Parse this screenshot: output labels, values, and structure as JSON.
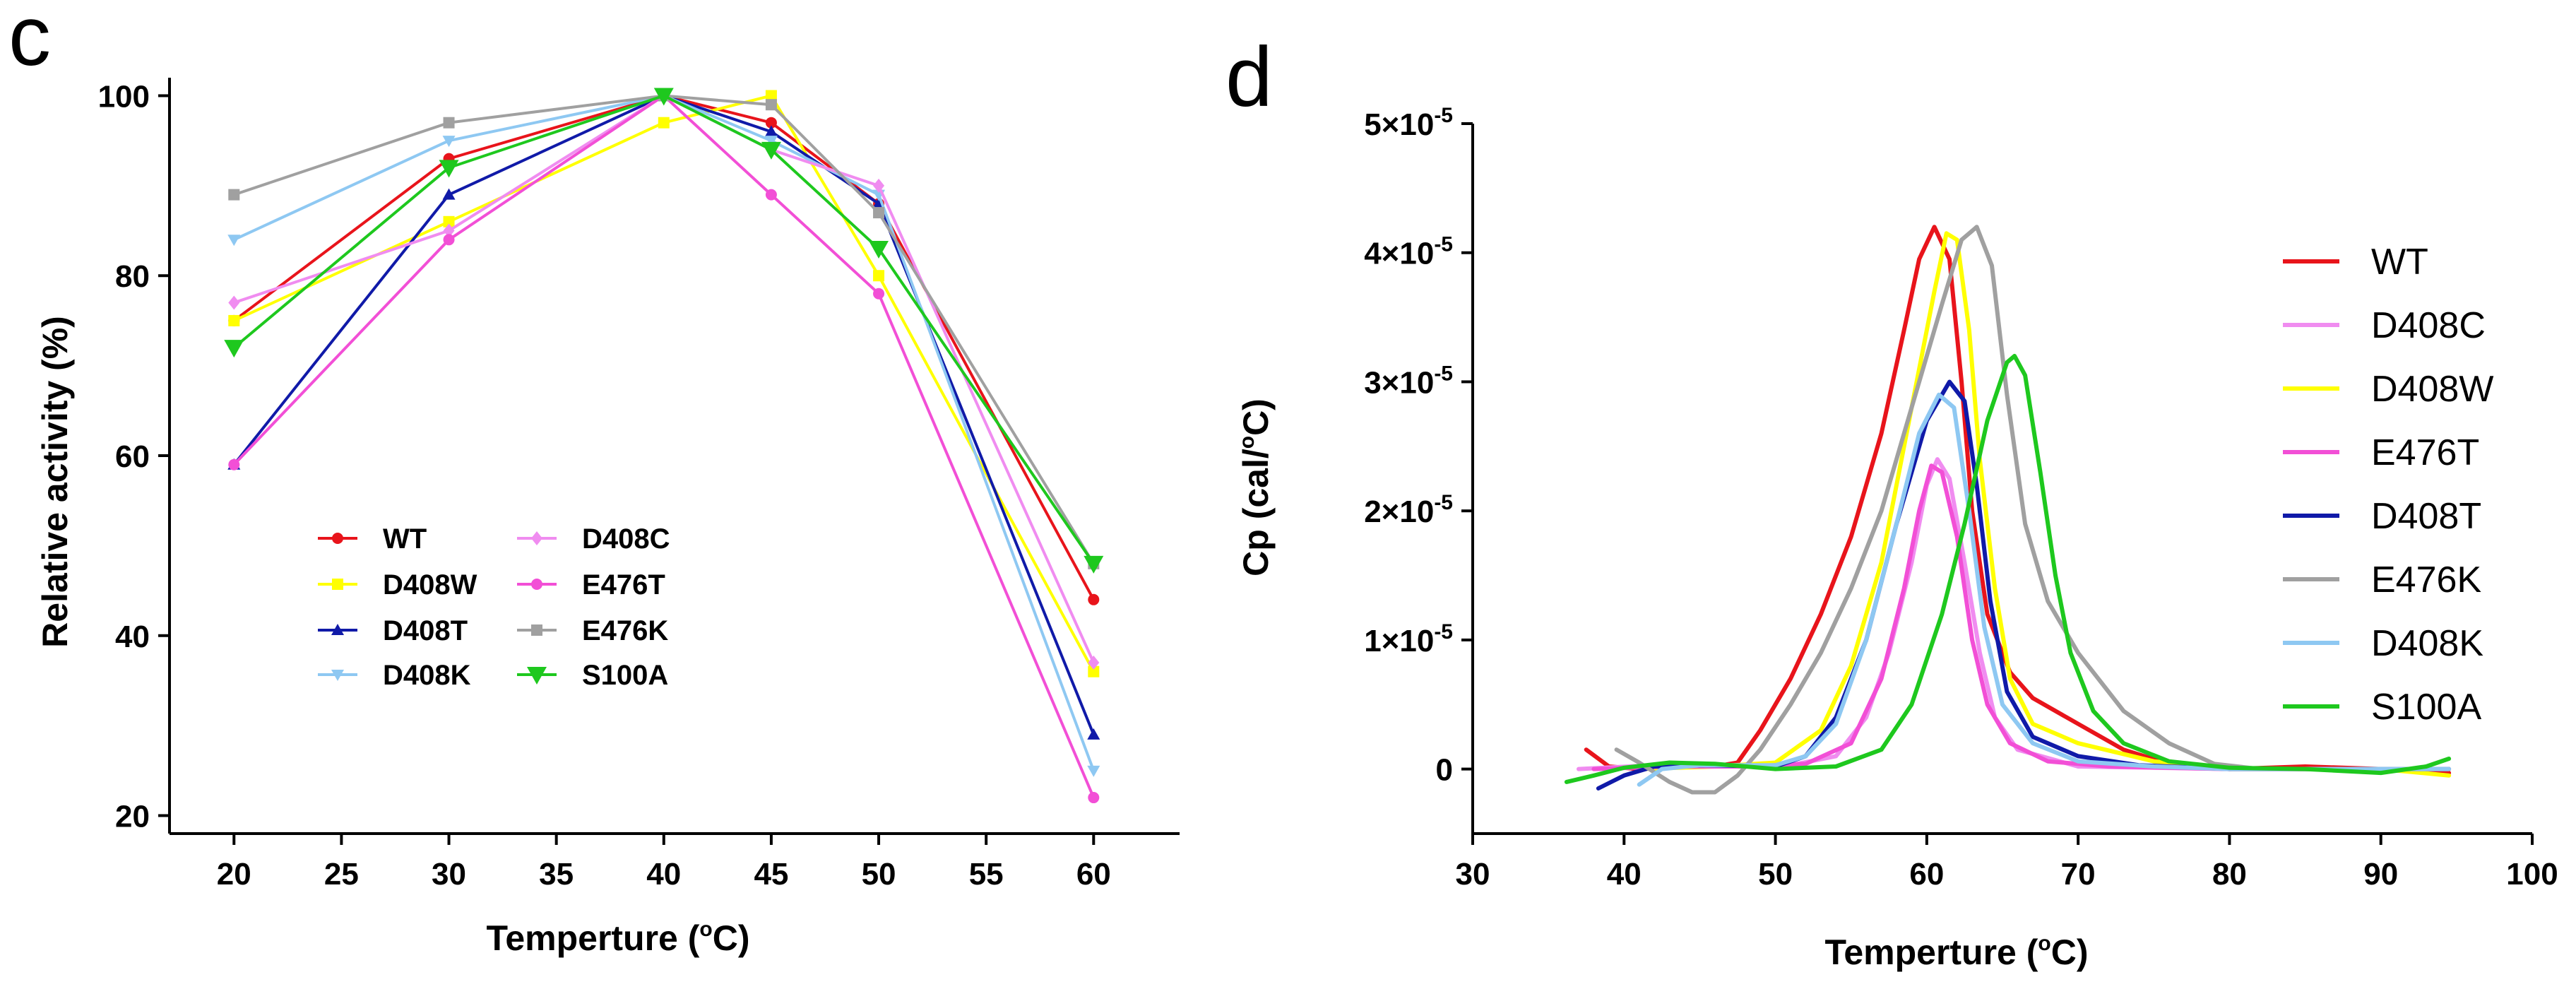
{
  "panels": {
    "c": {
      "letter": "c",
      "xlabel_pre": "Temperture (",
      "xlabel_sup": "o",
      "xlabel_post": "C)",
      "ylabel": "Relative activity (%)"
    },
    "d": {
      "letter": "d",
      "xlabel_pre": "Temperture (",
      "xlabel_sup": "o",
      "xlabel_post": "C)",
      "ylabel_pre": "Cp (cal/",
      "ylabel_sup": "o",
      "ylabel_post": "C)"
    }
  },
  "chart_data": [
    {
      "panel": "c",
      "type": "line",
      "title": "",
      "xlabel": "Temperture (oC)",
      "ylabel": "Relative activity (%)",
      "xlim": [
        17,
        64
      ],
      "ylim": [
        18,
        102
      ],
      "x": [
        20,
        30,
        40,
        45,
        50,
        60
      ],
      "xticks": [
        20,
        25,
        30,
        35,
        40,
        45,
        50,
        55,
        60
      ],
      "yticks": [
        20,
        40,
        60,
        80,
        100
      ],
      "legend_position": "lower-left",
      "series": [
        {
          "name": "WT",
          "color": "#e8141b",
          "marker": "circle",
          "values": [
            75,
            93,
            100,
            97,
            88,
            44
          ]
        },
        {
          "name": "D408W",
          "color": "#ffff00",
          "marker": "square",
          "values": [
            75,
            86,
            97,
            100,
            80,
            36
          ]
        },
        {
          "name": "D408T",
          "color": "#101aa8",
          "marker": "triangle",
          "values": [
            59,
            89,
            100,
            96,
            88,
            29
          ]
        },
        {
          "name": "D408K",
          "color": "#8ec8f2",
          "marker": "triangle-down",
          "values": [
            84,
            95,
            100,
            95,
            89,
            25
          ]
        },
        {
          "name": "D408C",
          "color": "#f08cf0",
          "marker": "diamond",
          "values": [
            77,
            85,
            100,
            94,
            90,
            37
          ]
        },
        {
          "name": "E476T",
          "color": "#f24fd6",
          "marker": "circle",
          "values": [
            59,
            84,
            100,
            89,
            78,
            22
          ]
        },
        {
          "name": "E476K",
          "color": "#a0a0a0",
          "marker": "square",
          "values": [
            89,
            97,
            100,
            99,
            87,
            48
          ]
        },
        {
          "name": "S100A",
          "color": "#1ec81e",
          "marker": "big-triangle-down",
          "values": [
            72,
            92,
            100,
            94,
            83,
            48
          ]
        }
      ]
    },
    {
      "panel": "d",
      "type": "line",
      "title": "",
      "xlabel": "Temperture (oC)",
      "ylabel": "Cp (cal/oC)",
      "xlim": [
        30,
        100
      ],
      "ylim": [
        -0.5,
        5
      ],
      "y_unit": "x10^-5",
      "xticks": [
        30,
        40,
        50,
        60,
        70,
        80,
        90,
        100
      ],
      "yticks": [
        0,
        1,
        2,
        3,
        4,
        5
      ],
      "ytick_labels": [
        {
          "mantissa": "",
          "value": 0,
          "label": "0"
        },
        {
          "mantissa": "1",
          "base": "×10",
          "exp": "-5",
          "value": 1
        },
        {
          "mantissa": "2",
          "base": "×10",
          "exp": "-5",
          "value": 2
        },
        {
          "mantissa": "3",
          "base": "×10",
          "exp": "-5",
          "value": 3
        },
        {
          "mantissa": "4",
          "base": "×10",
          "exp": "-5",
          "value": 4
        },
        {
          "mantissa": "5",
          "base": "×10",
          "exp": "-5",
          "value": 5
        }
      ],
      "legend_position": "right",
      "series": [
        {
          "name": "WT",
          "color": "#e8141b",
          "points": [
            [
              37.5,
              0.15
            ],
            [
              39,
              0.02
            ],
            [
              41,
              0.0
            ],
            [
              43,
              0.02
            ],
            [
              46,
              0.02
            ],
            [
              47.5,
              0.05
            ],
            [
              49,
              0.3
            ],
            [
              51,
              0.7
            ],
            [
              53,
              1.2
            ],
            [
              55,
              1.8
            ],
            [
              57,
              2.6
            ],
            [
              58.5,
              3.4
            ],
            [
              59.5,
              3.95
            ],
            [
              60.5,
              4.2
            ],
            [
              61.5,
              3.95
            ],
            [
              62.3,
              3.0
            ],
            [
              63,
              2.0
            ],
            [
              64,
              1.2
            ],
            [
              65.5,
              0.75
            ],
            [
              67,
              0.55
            ],
            [
              70,
              0.35
            ],
            [
              73,
              0.15
            ],
            [
              76,
              0.04
            ],
            [
              80,
              0.0
            ],
            [
              85,
              0.02
            ],
            [
              90,
              0.0
            ],
            [
              94.5,
              -0.03
            ]
          ]
        },
        {
          "name": "D408C",
          "color": "#f08cf0",
          "points": [
            [
              37,
              0.0
            ],
            [
              42,
              0.03
            ],
            [
              47,
              0.02
            ],
            [
              51,
              0.03
            ],
            [
              54,
              0.1
            ],
            [
              56,
              0.4
            ],
            [
              57.5,
              0.9
            ],
            [
              59,
              1.6
            ],
            [
              60,
              2.2
            ],
            [
              60.7,
              2.4
            ],
            [
              61.5,
              2.25
            ],
            [
              62.5,
              1.6
            ],
            [
              63.5,
              0.9
            ],
            [
              64.5,
              0.4
            ],
            [
              66,
              0.15
            ],
            [
              70,
              0.02
            ],
            [
              80,
              0.0
            ],
            [
              94.5,
              0.0
            ]
          ]
        },
        {
          "name": "D408W",
          "color": "#ffff00",
          "points": [
            [
              41,
              0.0
            ],
            [
              46,
              0.02
            ],
            [
              50,
              0.05
            ],
            [
              53,
              0.3
            ],
            [
              55,
              0.8
            ],
            [
              57,
              1.6
            ],
            [
              59,
              2.8
            ],
            [
              60.5,
              3.7
            ],
            [
              61.3,
              4.15
            ],
            [
              62,
              4.1
            ],
            [
              62.8,
              3.4
            ],
            [
              63.5,
              2.4
            ],
            [
              64.5,
              1.4
            ],
            [
              65.5,
              0.7
            ],
            [
              67,
              0.35
            ],
            [
              70,
              0.2
            ],
            [
              75,
              0.06
            ],
            [
              80,
              0.0
            ],
            [
              90,
              0.0
            ],
            [
              94.5,
              -0.05
            ]
          ]
        },
        {
          "name": "E476T",
          "color": "#f24fd6",
          "points": [
            [
              38,
              0.0
            ],
            [
              43,
              0.02
            ],
            [
              48,
              0.02
            ],
            [
              52,
              0.04
            ],
            [
              55,
              0.2
            ],
            [
              57,
              0.7
            ],
            [
              58.5,
              1.4
            ],
            [
              59.5,
              2.0
            ],
            [
              60.3,
              2.35
            ],
            [
              61,
              2.3
            ],
            [
              62,
              1.8
            ],
            [
              63,
              1.0
            ],
            [
              64,
              0.5
            ],
            [
              65.5,
              0.2
            ],
            [
              68,
              0.06
            ],
            [
              72,
              0.02
            ],
            [
              80,
              0.0
            ],
            [
              94.5,
              0.0
            ]
          ]
        },
        {
          "name": "D408T",
          "color": "#101aa8",
          "points": [
            [
              38.3,
              -0.15
            ],
            [
              40,
              -0.05
            ],
            [
              42,
              0.02
            ],
            [
              45,
              0.03
            ],
            [
              50,
              0.02
            ],
            [
              52,
              0.1
            ],
            [
              54,
              0.4
            ],
            [
              56,
              1.0
            ],
            [
              58,
              1.9
            ],
            [
              60,
              2.7
            ],
            [
              61.5,
              3.0
            ],
            [
              62.5,
              2.85
            ],
            [
              63.3,
              2.2
            ],
            [
              64.2,
              1.3
            ],
            [
              65.3,
              0.6
            ],
            [
              67,
              0.25
            ],
            [
              70,
              0.1
            ],
            [
              74,
              0.03
            ],
            [
              80,
              0.0
            ],
            [
              94.5,
              0.0
            ]
          ]
        },
        {
          "name": "E476K",
          "color": "#a0a0a0",
          "points": [
            [
              39.5,
              0.15
            ],
            [
              41,
              0.05
            ],
            [
              43,
              -0.1
            ],
            [
              44.5,
              -0.18
            ],
            [
              46,
              -0.18
            ],
            [
              47.5,
              -0.05
            ],
            [
              49,
              0.15
            ],
            [
              51,
              0.5
            ],
            [
              53,
              0.9
            ],
            [
              55,
              1.4
            ],
            [
              57,
              2.0
            ],
            [
              59,
              2.8
            ],
            [
              61,
              3.6
            ],
            [
              62.3,
              4.1
            ],
            [
              63.3,
              4.2
            ],
            [
              64.3,
              3.9
            ],
            [
              65.3,
              2.9
            ],
            [
              66.5,
              1.9
            ],
            [
              68,
              1.3
            ],
            [
              70,
              0.9
            ],
            [
              73,
              0.45
            ],
            [
              76,
              0.2
            ],
            [
              79,
              0.04
            ],
            [
              82,
              0.0
            ],
            [
              88,
              0.0
            ],
            [
              94.5,
              0.0
            ]
          ]
        },
        {
          "name": "D408K",
          "color": "#8ec8f2",
          "points": [
            [
              41,
              -0.12
            ],
            [
              42.5,
              0.0
            ],
            [
              45,
              0.03
            ],
            [
              50,
              0.03
            ],
            [
              52,
              0.1
            ],
            [
              54,
              0.35
            ],
            [
              56,
              1.0
            ],
            [
              58,
              1.9
            ],
            [
              59.5,
              2.6
            ],
            [
              60.8,
              2.9
            ],
            [
              61.8,
              2.8
            ],
            [
              62.8,
              2.0
            ],
            [
              63.8,
              1.1
            ],
            [
              65,
              0.5
            ],
            [
              67,
              0.2
            ],
            [
              70,
              0.06
            ],
            [
              75,
              0.02
            ],
            [
              80,
              0.0
            ],
            [
              94.5,
              0.0
            ]
          ]
        },
        {
          "name": "S100A",
          "color": "#1ec81e",
          "points": [
            [
              36.2,
              -0.1
            ],
            [
              38,
              -0.05
            ],
            [
              40,
              0.01
            ],
            [
              43,
              0.05
            ],
            [
              46,
              0.04
            ],
            [
              50,
              0.0
            ],
            [
              54,
              0.02
            ],
            [
              57,
              0.15
            ],
            [
              59,
              0.5
            ],
            [
              61,
              1.2
            ],
            [
              62.5,
              1.9
            ],
            [
              64,
              2.7
            ],
            [
              65.3,
              3.15
            ],
            [
              65.8,
              3.2
            ],
            [
              66.5,
              3.05
            ],
            [
              67.5,
              2.3
            ],
            [
              68.5,
              1.5
            ],
            [
              69.5,
              0.9
            ],
            [
              71,
              0.45
            ],
            [
              73,
              0.2
            ],
            [
              76,
              0.06
            ],
            [
              80,
              0.01
            ],
            [
              85,
              0.0
            ],
            [
              90,
              -0.03
            ],
            [
              93,
              0.02
            ],
            [
              94.5,
              0.08
            ]
          ]
        }
      ]
    }
  ]
}
